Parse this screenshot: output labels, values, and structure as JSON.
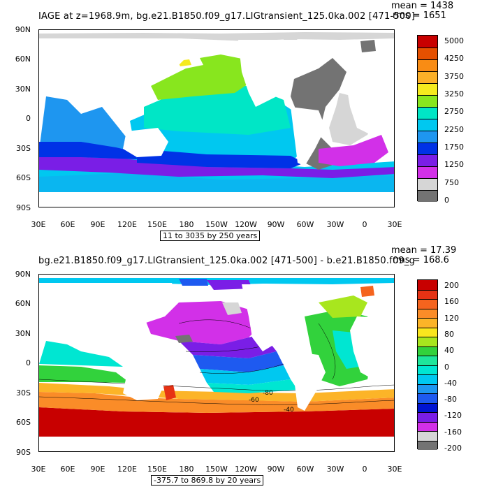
{
  "top": {
    "title": "IAGE at z=1968.9m, bg.e21.B1850.f09_g17.LIGtransient_125.0ka.002 [471-500]",
    "mean": "mean = 1438",
    "rms": "rms = 1651",
    "range_label": "11 to 3035 by 250 years",
    "lat_labels": [
      "90N",
      "60N",
      "30N",
      "0",
      "30S",
      "60S",
      "90S"
    ],
    "lon_labels": [
      "30E",
      "60E",
      "90E",
      "120E",
      "150E",
      "180",
      "150W",
      "120W",
      "90W",
      "60W",
      "30W",
      "0",
      "30E"
    ],
    "colorbar_labels": [
      "5000",
      "4250",
      "3750",
      "3250",
      "2750",
      "2250",
      "1750",
      "1250",
      "750",
      "0"
    ],
    "colorbar_colors": [
      "#c80000",
      "#e65000",
      "#f98c14",
      "#fcb028",
      "#f5ea1e",
      "#88e61e",
      "#00e6c6",
      "#00c8f0",
      "#1e96f0",
      "#0032e6",
      "#7a1ee6",
      "#d230e8",
      "#d6d6d6",
      "#737373"
    ]
  },
  "bottom": {
    "title": "bg.e21.B1850.f09_g17.LIGtransient_125.0ka.002 [471-500] - b.e21.B1850.f09_g",
    "mean": "mean = 17.39",
    "rms": "rms = 168.6",
    "range_label": "-375.7 to 869.8 by 20 years",
    "lat_labels": [
      "90N",
      "60N",
      "30N",
      "0",
      "30S",
      "60S",
      "90S"
    ],
    "lon_labels": [
      "30E",
      "60E",
      "90E",
      "120E",
      "150E",
      "180",
      "150W",
      "120W",
      "90W",
      "60W",
      "30W",
      "0",
      "30E"
    ],
    "colorbar_labels": [
      "200",
      "160",
      "120",
      "80",
      "40",
      "0",
      "-40",
      "-80",
      "-120",
      "-160",
      "-200"
    ],
    "colorbar_colors": [
      "#c80000",
      "#e63214",
      "#f5641e",
      "#fa8c28",
      "#fcb428",
      "#fae61e",
      "#a8e61e",
      "#32d23c",
      "#1ee69b",
      "#00e6d2",
      "#00c8f0",
      "#1e96f0",
      "#1e5af0",
      "#0014d2",
      "#7a1ee6",
      "#d230e8",
      "#d6d6d6",
      "#737373"
    ],
    "contour_labels": [
      "-60",
      "-40",
      "-80"
    ]
  }
}
